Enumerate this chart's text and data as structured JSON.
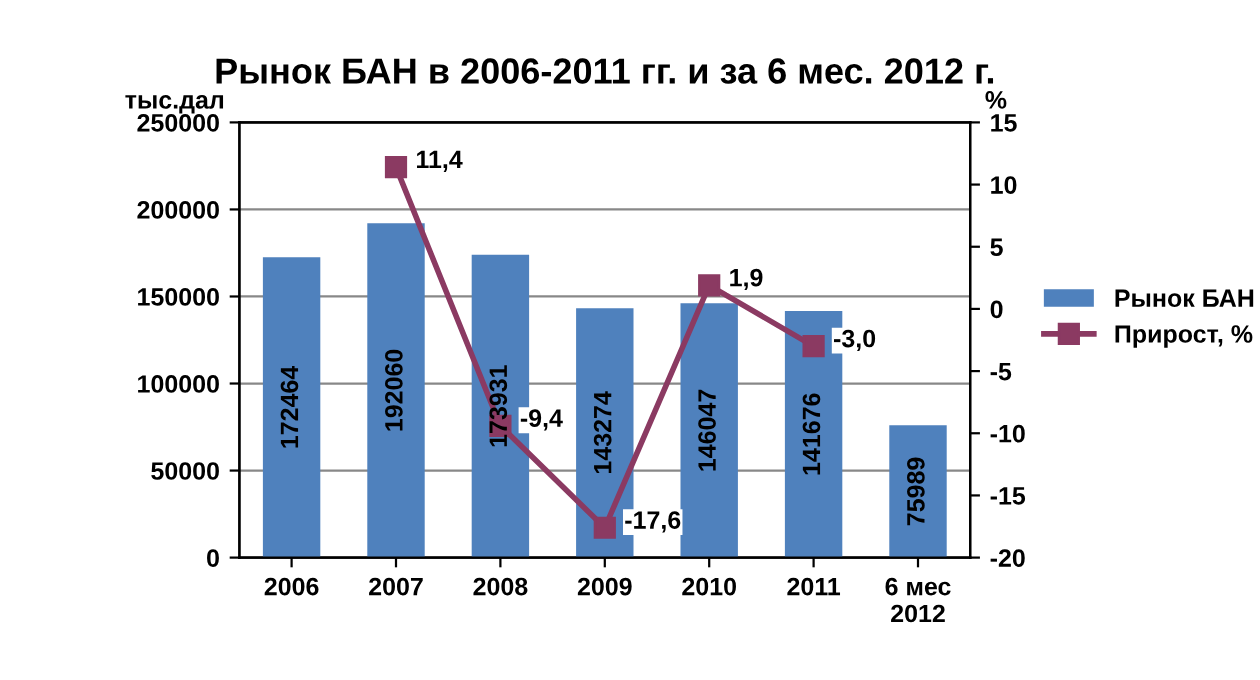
{
  "chart_data": {
    "type": "bar",
    "title": "Рынок БАН в 2006-2011 гг. и за 6 мес. 2012 г.",
    "ylabel": "тыс.дал",
    "y2label": "%",
    "categories": [
      "2006",
      "2007",
      "2008",
      "2009",
      "2010",
      "2011",
      "6 мес\n2012"
    ],
    "series": [
      {
        "name": "Рынок БАН",
        "color": "#4f81bd",
        "values": [
          172464,
          192060,
          173931,
          143274,
          146047,
          141676,
          75989
        ]
      },
      {
        "name": "Прирост, %",
        "type": "line",
        "axis": "y2",
        "color": "#8b3a62",
        "marker": "square",
        "values": [
          null,
          11.4,
          -9.4,
          -17.6,
          1.9,
          -3.0,
          null
        ],
        "value_labels": [
          null,
          "11,4",
          "-9,4",
          "-17,6",
          "1,9",
          "-3,0",
          null
        ]
      }
    ],
    "data_labels": true,
    "ylim": [
      0,
      250000
    ],
    "yticks": [
      0,
      50000,
      100000,
      150000,
      200000,
      250000
    ],
    "y2lim": [
      -20,
      15
    ],
    "y2ticks": [
      -20,
      -15,
      -10,
      -5,
      0,
      5,
      10,
      15
    ],
    "grid": "y",
    "legend": "right"
  }
}
